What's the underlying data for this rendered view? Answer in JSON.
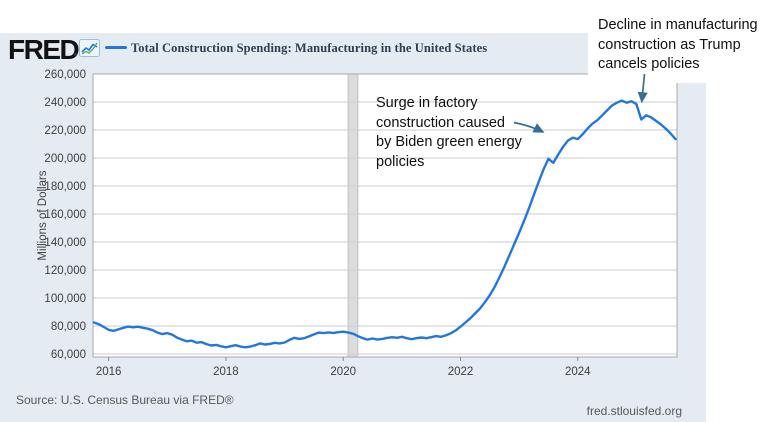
{
  "header": {
    "logo": "FRED",
    "series_label": "Total Construction Spending: Manufacturing in the United States"
  },
  "icons": {
    "logo_chart_icon": "line-chart-icon"
  },
  "annotations": [
    {
      "id": "surge",
      "lines": [
        "Surge in factory",
        "construction caused",
        "by Biden green energy",
        "policies"
      ]
    },
    {
      "id": "decline",
      "lines": [
        "Decline in manufacturing",
        "construction as Trump",
        "cancels policies"
      ]
    }
  ],
  "footer": {
    "source": "Source: U.S. Census Bureau via FRED®",
    "site": "fred.stlouisfed.org"
  },
  "colors": {
    "card_background": "#e4ebf3",
    "line_blue": "#2576db",
    "arrow_steel_blue": "#35708e",
    "title_navy": "#2f3e52",
    "recession_band_gray": "#dcdcdc"
  },
  "chart_data": {
    "type": "line",
    "title": "Total Construction Spending: Manufacturing in the United States",
    "xlabel": "",
    "ylabel": "Millions of Dollars",
    "ylim": [
      60000,
      260000
    ],
    "y_tick_step": 20000,
    "y_tick_labels": [
      "260,000",
      "240,000",
      "220,000",
      "200,000",
      "180,000",
      "160,000",
      "140,000",
      "120,000",
      "100,000",
      "80,000",
      "60,000"
    ],
    "x_tick_labels": [
      "2016",
      "2018",
      "2020",
      "2022",
      "2024"
    ],
    "frequency": "monthly",
    "start": "2015-10",
    "end": "2025-09",
    "recession_band": {
      "from": "2020-02",
      "to": "2020-04"
    },
    "line_color": "#2576db",
    "legend_position": "top",
    "grid": "horizontal",
    "values": [
      82500,
      81300,
      79300,
      77200,
      76600,
      77600,
      78700,
      79600,
      79100,
      79500,
      78700,
      78100,
      77000,
      75300,
      74200,
      74900,
      73800,
      71700,
      70300,
      69100,
      69600,
      68100,
      68500,
      67100,
      66100,
      66500,
      65500,
      64800,
      65600,
      66300,
      65300,
      64800,
      65300,
      66300,
      67600,
      66800,
      67200,
      68000,
      67600,
      68200,
      70100,
      71600,
      70800,
      71300,
      72600,
      74000,
      75300,
      74900,
      75400,
      75100,
      75600,
      75900,
      75300,
      74500,
      72800,
      71300,
      70300,
      71100,
      70300,
      70800,
      71500,
      72000,
      71600,
      72300,
      71300,
      70600,
      71300,
      71800,
      71300,
      72000,
      72800,
      72300,
      73300,
      74800,
      76800,
      79500,
      82500,
      85500,
      89000,
      92500,
      97000,
      102000,
      108000,
      115000,
      122500,
      130500,
      138500,
      146500,
      155000,
      164000,
      173500,
      183000,
      192000,
      199500,
      196500,
      202500,
      208000,
      212500,
      214500,
      213500,
      217000,
      221000,
      224500,
      227000,
      230500,
      234000,
      237500,
      239500,
      241000,
      239500,
      240500,
      238500,
      227500,
      230500,
      229000,
      226500,
      224000,
      221000,
      217500,
      213500
    ]
  }
}
